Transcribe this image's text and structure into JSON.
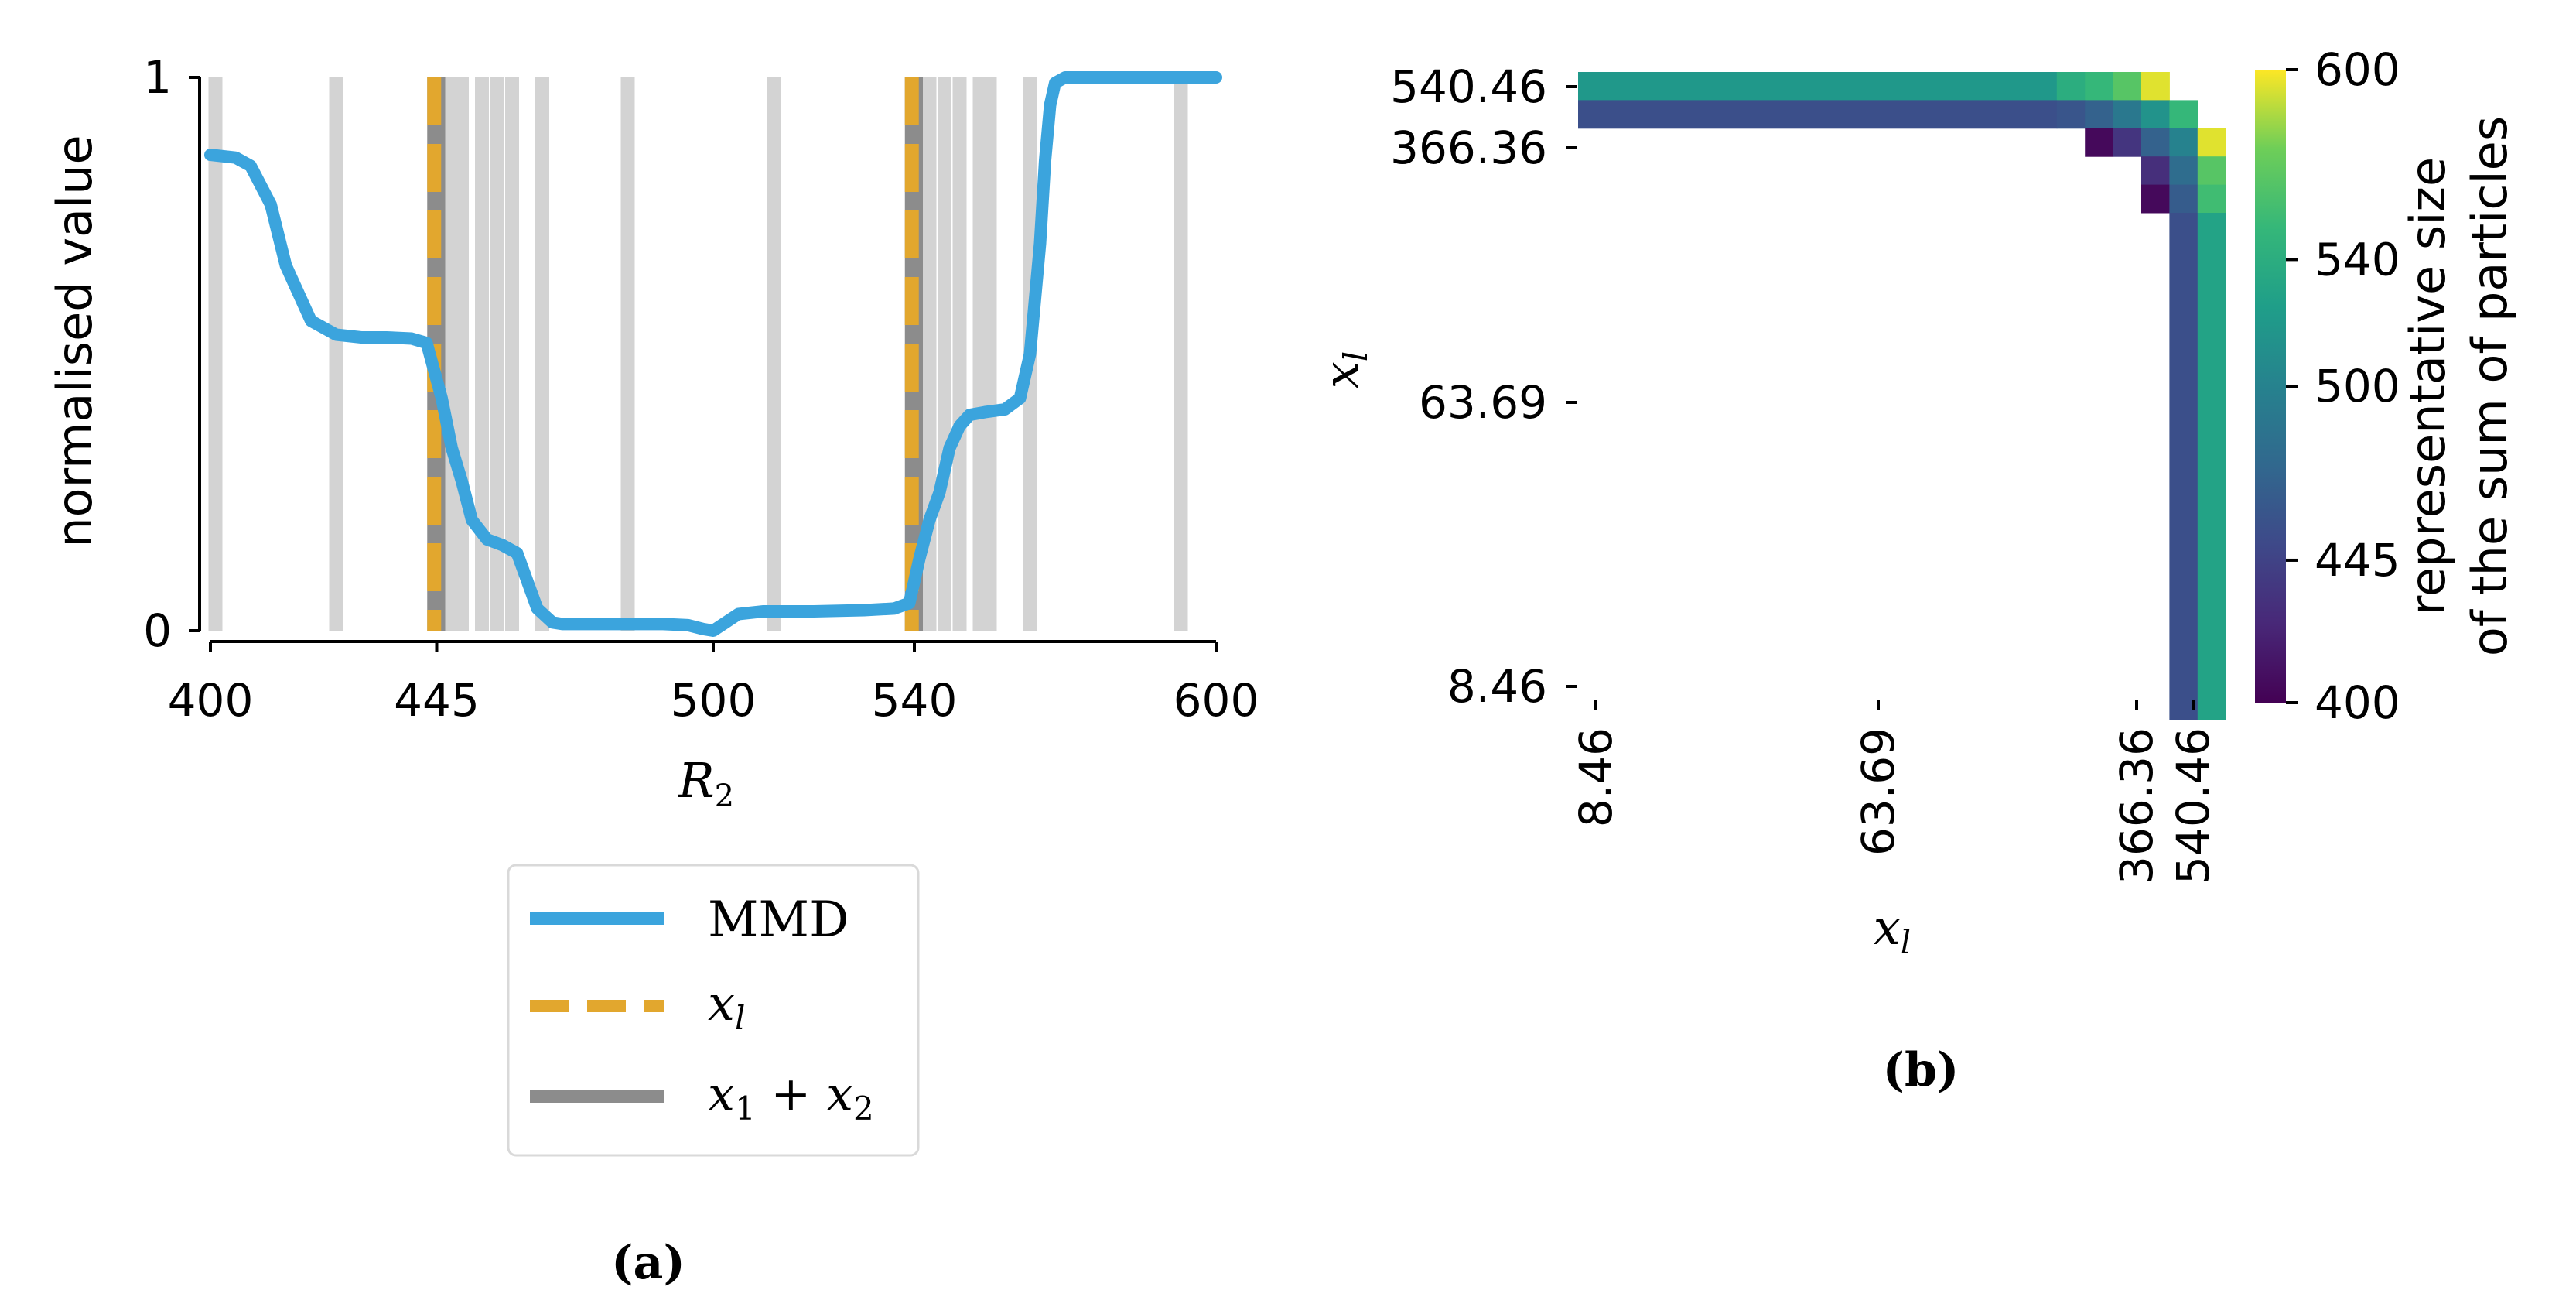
{
  "chart_data": [
    {
      "type": "line",
      "panel_label": "(a)",
      "xlabel": "R",
      "xlabel_sub": "2",
      "ylabel": "normalised value",
      "xlim": [
        400,
        600
      ],
      "ylim": [
        0,
        1
      ],
      "xticks": [
        "400",
        "445",
        "500",
        "540",
        "600"
      ],
      "xtick_values": [
        400,
        445,
        500,
        540,
        600
      ],
      "yticks": [
        "0",
        "1"
      ],
      "ytick_values": [
        0,
        1
      ],
      "series": [
        {
          "name": "MMD",
          "color": "#3ba4dd",
          "x": [
            400,
            405,
            408,
            412,
            415,
            420,
            425,
            430,
            435,
            440,
            443,
            446,
            448,
            450,
            452,
            455,
            458,
            461,
            463,
            465,
            468,
            470,
            475,
            480,
            485,
            490,
            495,
            498,
            500,
            502,
            505,
            510,
            520,
            530,
            536,
            539,
            541,
            543,
            545,
            547,
            549,
            551,
            554,
            558,
            561,
            563,
            565,
            566,
            567,
            568,
            570,
            575,
            580,
            590,
            600
          ],
          "y": [
            0.86,
            0.855,
            0.84,
            0.77,
            0.66,
            0.56,
            0.535,
            0.53,
            0.53,
            0.528,
            0.52,
            0.42,
            0.33,
            0.27,
            0.2,
            0.165,
            0.155,
            0.14,
            0.09,
            0.04,
            0.015,
            0.012,
            0.012,
            0.012,
            0.012,
            0.012,
            0.01,
            0.003,
            0.0,
            0.012,
            0.03,
            0.035,
            0.035,
            0.037,
            0.04,
            0.05,
            0.13,
            0.2,
            0.25,
            0.33,
            0.37,
            0.39,
            0.395,
            0.4,
            0.42,
            0.5,
            0.7,
            0.85,
            0.95,
            0.99,
            1.0,
            1.0,
            1.0,
            1.0,
            1.0
          ]
        },
        {
          "name": "x_l",
          "color": "#e2a72e",
          "style": "dashed",
          "x": [
            444.5,
            539.5
          ]
        },
        {
          "name": "x_1 + x_2",
          "color": "#8c8c8c",
          "x": [
            445,
            540
          ]
        }
      ],
      "background_lines": [
        401,
        425,
        446,
        448,
        450,
        454,
        457,
        460,
        466,
        483,
        512,
        541,
        543,
        546,
        549,
        553,
        555,
        563,
        593
      ],
      "legend": [
        {
          "label": "MMD",
          "style": "solid",
          "color": "#3ba4dd"
        },
        {
          "label": "x",
          "sub": "l",
          "style": "dashed",
          "color": "#e2a72e"
        },
        {
          "label": "x",
          "sub": "1",
          "plus": " + ",
          "label2": "x",
          "sub2": "2",
          "style": "solid",
          "color": "#8c8c8c"
        }
      ],
      "legend_position": "below"
    },
    {
      "type": "heatmap",
      "panel_label": "(b)",
      "xlabel": "x",
      "xlabel_sub": "l",
      "ylabel": "x",
      "ylabel_sub": "l",
      "xticks": [
        "8.46",
        "63.69",
        "366.36",
        "540.46"
      ],
      "yticks": [
        "540.46",
        "366.36",
        "63.69",
        "8.46"
      ],
      "grid_size": 22,
      "cells": [
        {
          "row": 0,
          "col_start": 0,
          "col_end": 16,
          "value": 520
        },
        {
          "row": 0,
          "col": 17,
          "value": 540
        },
        {
          "row": 0,
          "col": 18,
          "value": 550
        },
        {
          "row": 0,
          "col": 19,
          "value": 565
        },
        {
          "row": 0,
          "col": 20,
          "value": 595
        },
        {
          "row": 1,
          "col_start": 0,
          "col_end": 16,
          "value": 455
        },
        {
          "row": 1,
          "col": 17,
          "value": 460
        },
        {
          "row": 1,
          "col": 18,
          "value": 470
        },
        {
          "row": 1,
          "col": 19,
          "value": 490
        },
        {
          "row": 1,
          "col": 20,
          "value": 515
        },
        {
          "row": 1,
          "col": 21,
          "value": 550
        },
        {
          "row": 2,
          "col": 18,
          "value": 405
        },
        {
          "row": 2,
          "col": 19,
          "value": 435
        },
        {
          "row": 2,
          "col": 20,
          "value": 470
        },
        {
          "row": 2,
          "col": 21,
          "value": 500
        },
        {
          "row": 2,
          "col": 22,
          "value": 595
        },
        {
          "row": 3,
          "col": 20,
          "value": 430
        },
        {
          "row": 3,
          "col": 21,
          "value": 480
        },
        {
          "row": 3,
          "col": 22,
          "value": 565
        },
        {
          "row": 4,
          "col": 20,
          "value": 405
        },
        {
          "row": 4,
          "col": 21,
          "value": 465
        },
        {
          "row": 4,
          "col": 22,
          "value": 555
        },
        {
          "row": 5,
          "row_end": 22,
          "col": 21,
          "value": 455
        },
        {
          "row": 5,
          "row_end": 22,
          "col": 22,
          "value": 530
        }
      ],
      "colorbar": {
        "label_line1": "representative size",
        "label_line2": "of the sum of particles",
        "ticks": [
          "400",
          "445",
          "500",
          "540",
          "600"
        ],
        "tick_values": [
          400,
          445,
          500,
          540,
          600
        ],
        "range": [
          400,
          600
        ],
        "colormap": "viridis"
      }
    }
  ]
}
